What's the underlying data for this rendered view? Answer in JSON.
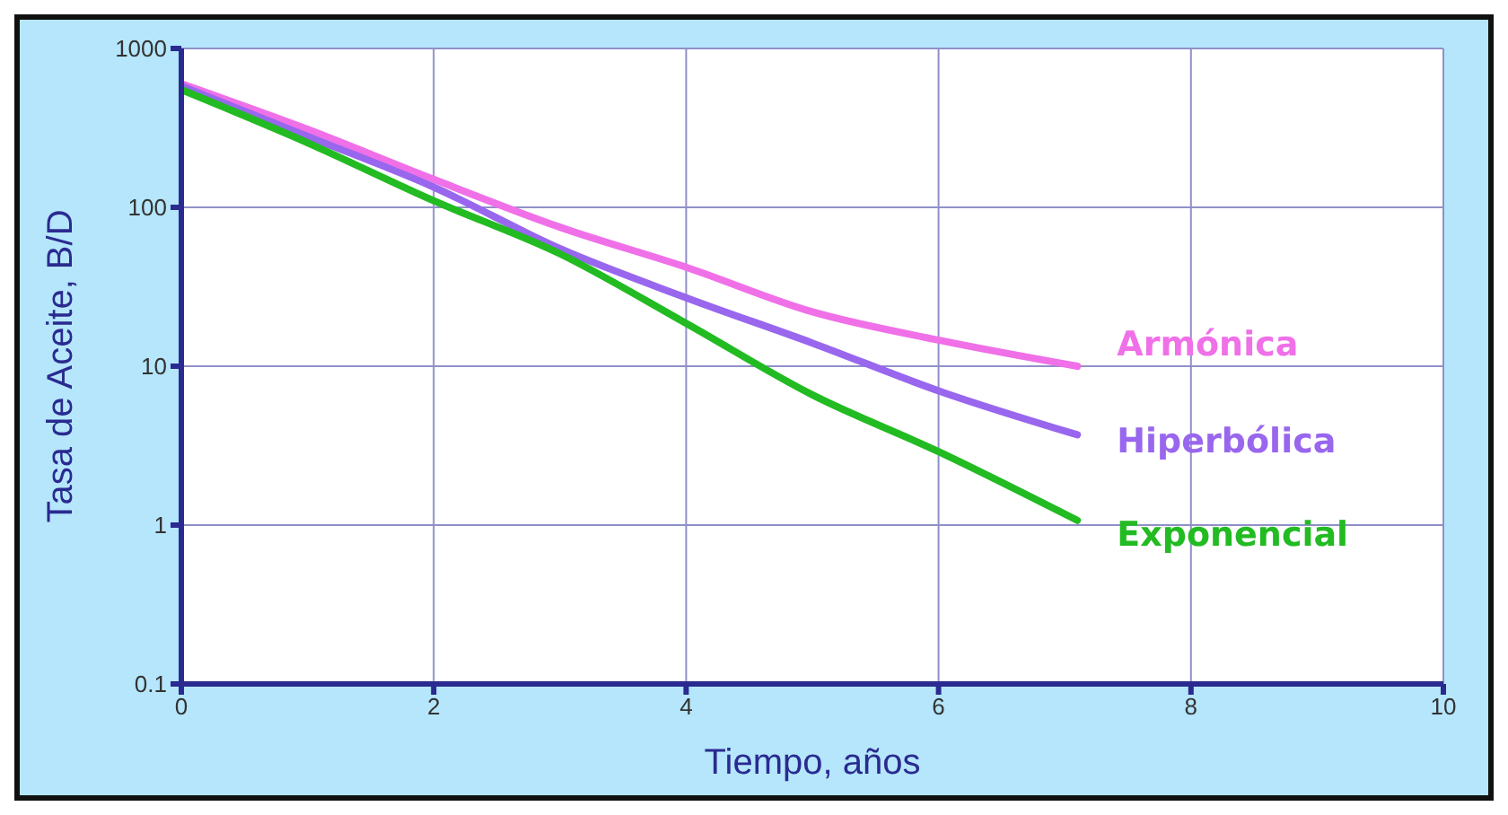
{
  "chart_data": {
    "type": "line",
    "xlabel": "Tiempo, años",
    "ylabel": "Tasa de Aceite, B/D",
    "x": [
      0,
      1,
      2,
      3,
      4,
      5,
      6,
      7.1
    ],
    "xlim": [
      0,
      10
    ],
    "xticks": [
      0,
      2,
      4,
      6,
      8,
      10
    ],
    "ylim": [
      0.1,
      1000
    ],
    "yticks": [
      0.1,
      1,
      10,
      100,
      1000
    ],
    "log": "y",
    "grid": true,
    "legend": false,
    "marker": "none",
    "line_style": "solid",
    "series": [
      {
        "name": "Armónica",
        "color": "#f070e8",
        "values": [
          600,
          310,
          150,
          75,
          42,
          22,
          14.6,
          10
        ]
      },
      {
        "name": "Hiperbólica",
        "color": "#9966ee",
        "values": [
          580,
          280,
          134,
          55,
          27,
          14,
          7,
          3.7
        ]
      },
      {
        "name": "Exponencial",
        "color": "#22bb22",
        "values": [
          550,
          255,
          110,
          51,
          18.6,
          6.6,
          2.9,
          1.07
        ]
      }
    ]
  }
}
